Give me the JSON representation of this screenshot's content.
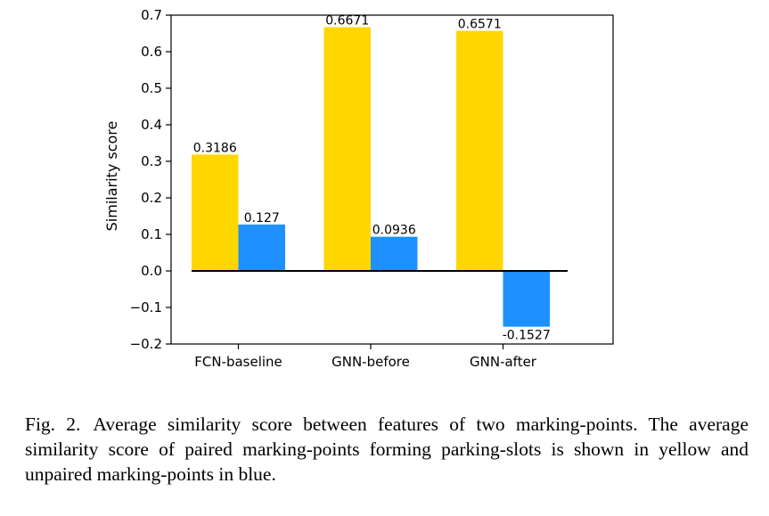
{
  "chart_data": {
    "type": "bar",
    "categories": [
      "FCN-baseline",
      "GNN-before",
      "GNN-after"
    ],
    "series": [
      {
        "values": [
          0.3186,
          0.6671,
          0.6571
        ],
        "labels": [
          "0.3186",
          "0.6671",
          "0.6571"
        ],
        "color": "#FFD700"
      },
      {
        "values": [
          0.127,
          0.0936,
          -0.1527
        ],
        "labels": [
          "0.127",
          "0.0936",
          "-0.1527"
        ],
        "color": "#1E90FF"
      }
    ],
    "xlabel": "",
    "ylabel": "Similarity score",
    "ylim": [
      -0.2,
      0.7
    ],
    "yticks": [
      0.7,
      0.6,
      0.5,
      0.4,
      0.3,
      0.2,
      0.1,
      0.0,
      -0.1,
      -0.2
    ],
    "ytick_labels": [
      "0.7",
      "0.6",
      "0.5",
      "0.4",
      "0.3",
      "0.2",
      "0.1",
      "0.0",
      "−0.1",
      "−0.2"
    ],
    "zero_line": true,
    "grid": false
  },
  "caption": {
    "label": "Fig. 2.",
    "text": "Average similarity score between features of two marking-points. The average similarity score of paired marking-points forming parking-slots is shown in yellow and unpaired marking-points in blue."
  }
}
